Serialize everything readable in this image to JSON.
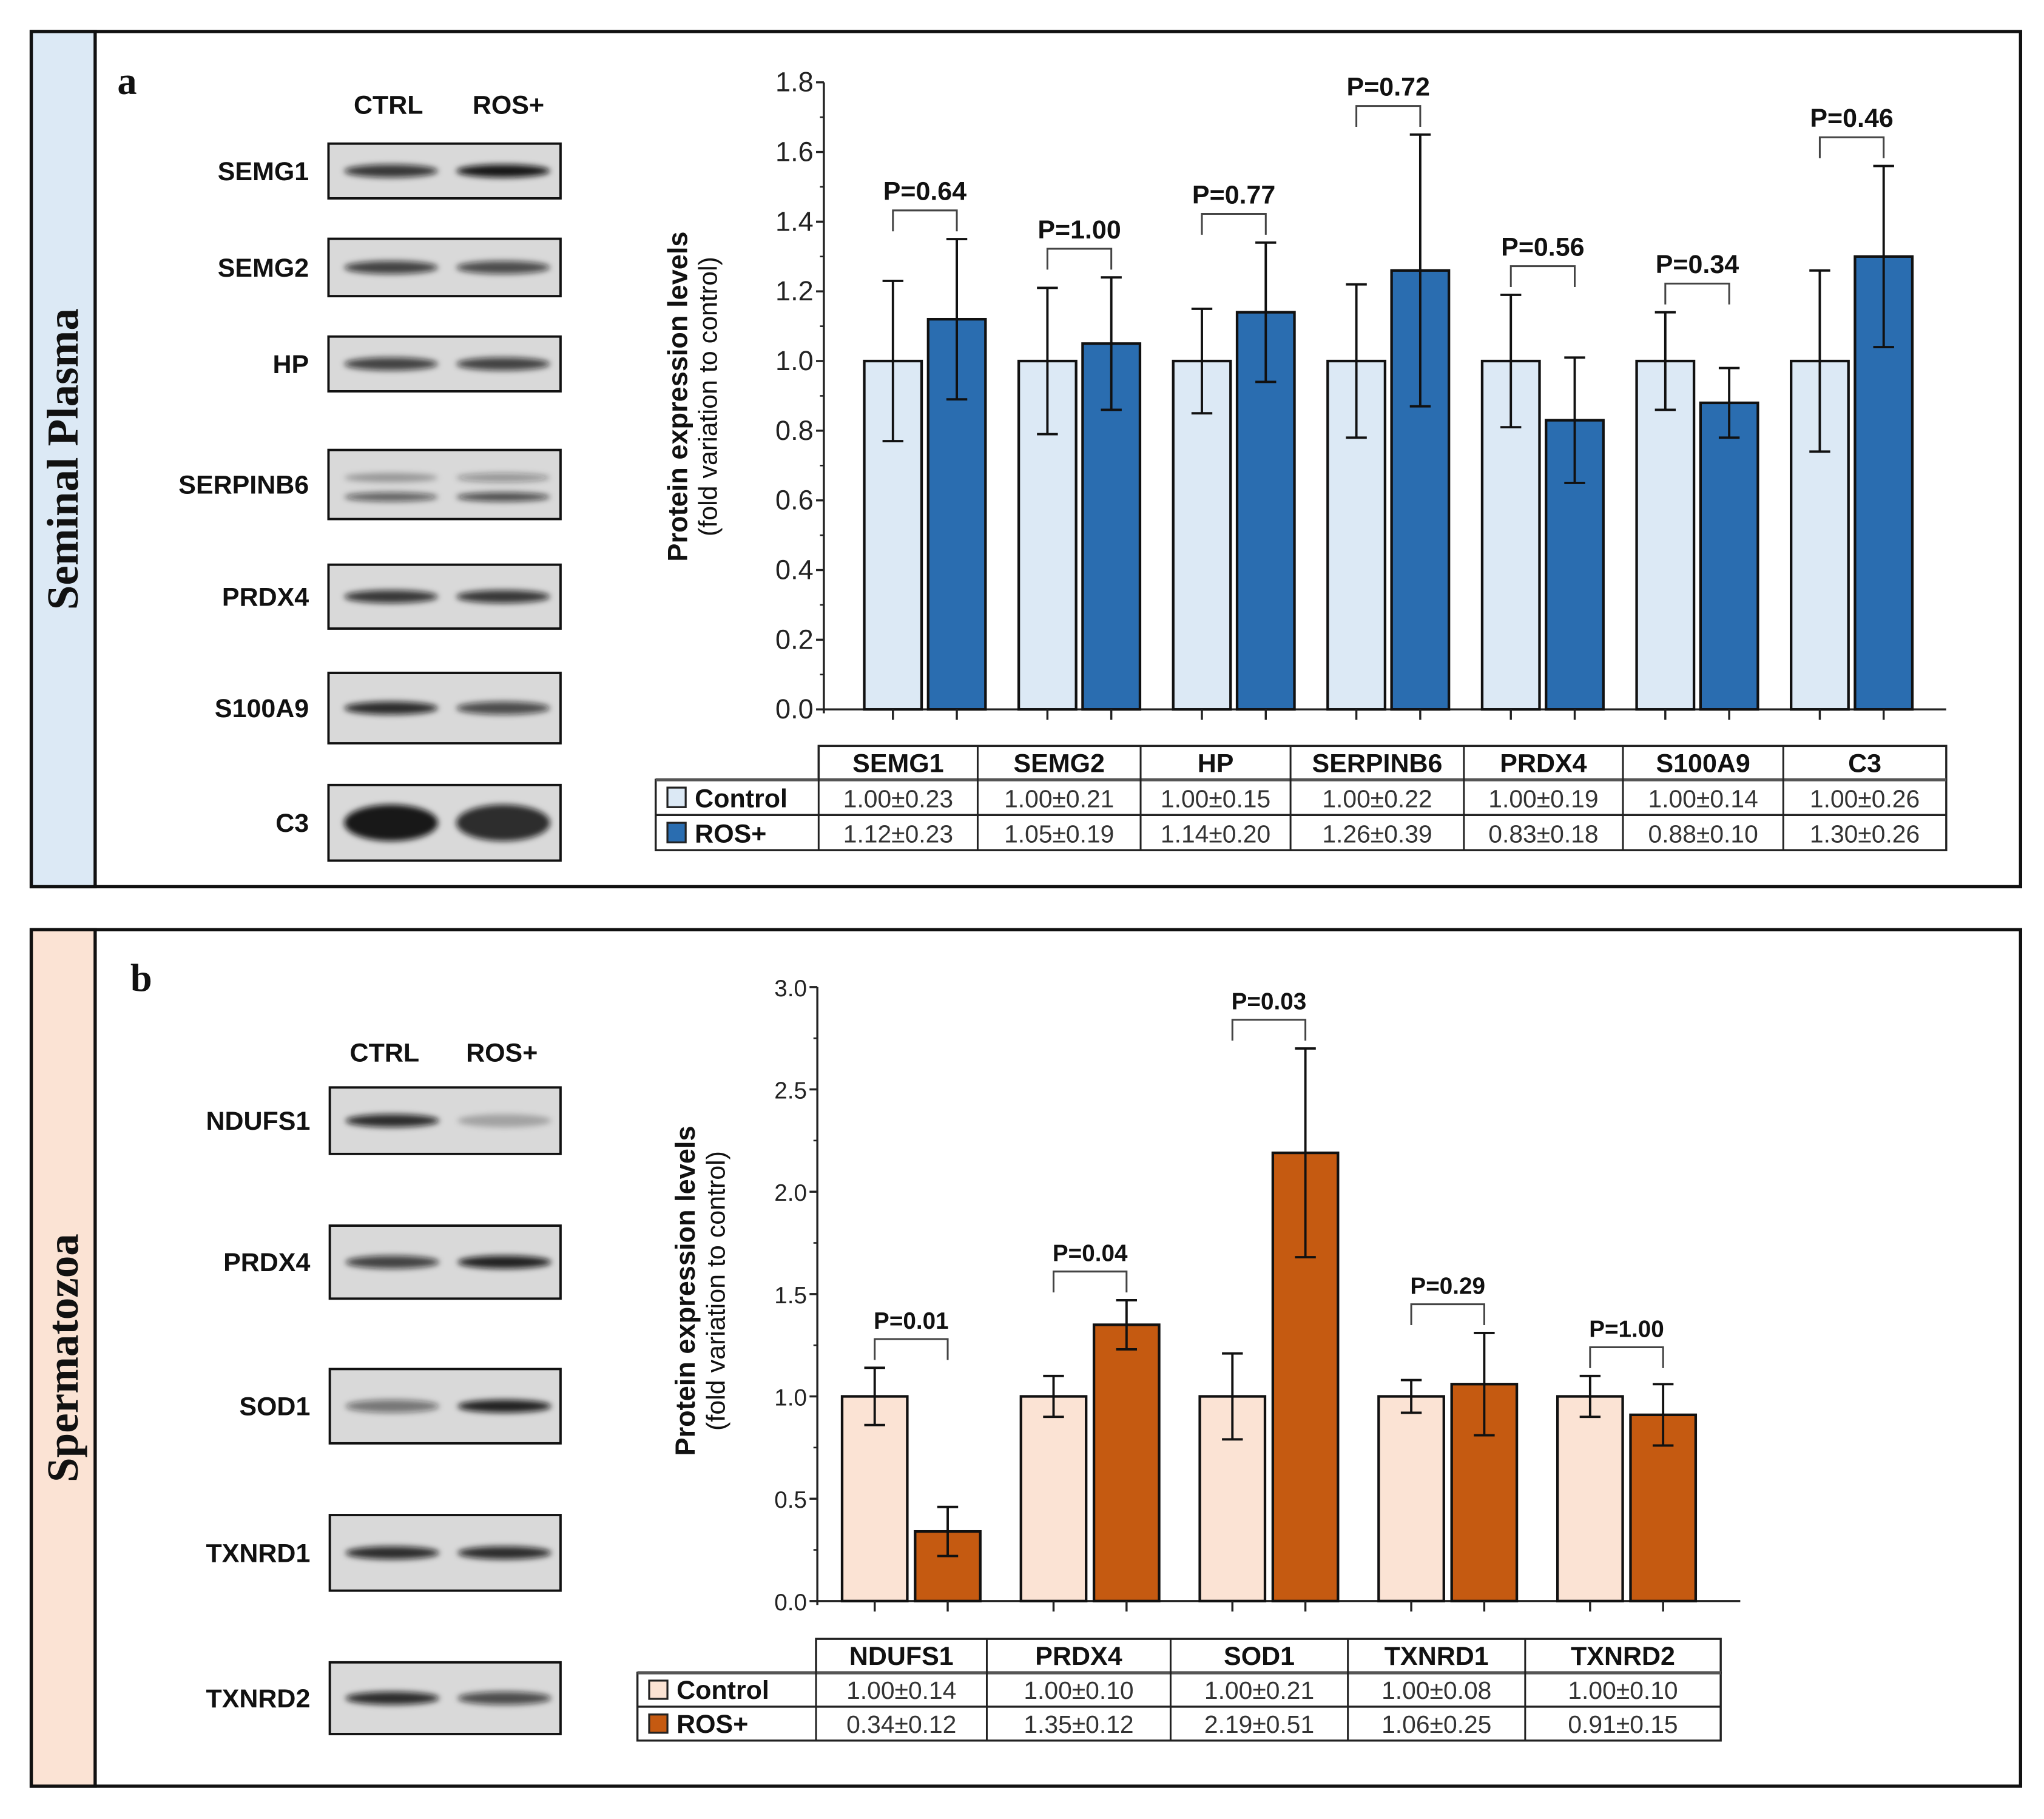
{
  "panels": [
    {
      "letter": "a",
      "side_label": "Seminal Plasma",
      "side_color": "#dce9f5",
      "blot_headers": [
        "CTRL",
        "ROS+"
      ],
      "blot_labels": [
        "SEMG1",
        "SEMG2",
        "HP",
        "SERPINB6",
        "PRDX4",
        "S100A9",
        "C3"
      ],
      "table": {
        "headers": [
          "SEMG1",
          "SEMG2",
          "HP",
          "SERPINB6",
          "PRDX4",
          "S100A9",
          "C3"
        ],
        "rows": [
          {
            "label": "Control",
            "cells": [
              "1.00±0.23",
              "1.00±0.21",
              "1.00±0.15",
              "1.00±0.22",
              "1.00±0.19",
              "1.00±0.14",
              "1.00±0.26"
            ]
          },
          {
            "label": "ROS+",
            "cells": [
              "1.12±0.23",
              "1.05±0.19",
              "1.14±0.20",
              "1.26±0.39",
              "0.83±0.18",
              "0.88±0.10",
              "1.30±0.26"
            ]
          }
        ]
      }
    },
    {
      "letter": "b",
      "side_label": "Spermatozoa",
      "side_color": "#fbe3d4",
      "blot_headers": [
        "CTRL",
        "ROS+"
      ],
      "blot_labels": [
        "NDUFS1",
        "PRDX4",
        "SOD1",
        "TXNRD1",
        "TXNRD2"
      ],
      "table": {
        "headers": [
          "NDUFS1",
          "PRDX4",
          "SOD1",
          "TXNRD1",
          "TXNRD2"
        ],
        "rows": [
          {
            "label": "Control",
            "cells": [
              "1.00±0.14",
              "1.00±0.10",
              "1.00±0.21",
              "1.00±0.08",
              "1.00±0.10"
            ]
          },
          {
            "label": "ROS+",
            "cells": [
              "0.34±0.12",
              "1.35±0.12",
              "2.19±0.51",
              "1.06±0.25",
              "0.91±0.15"
            ]
          }
        ]
      }
    }
  ],
  "chart_data": [
    {
      "type": "bar",
      "title": "",
      "ylabel": "Protein expression levels",
      "ylabel_sub": "(fold variation to control)",
      "ylim": [
        0,
        1.8
      ],
      "yticks": [
        "0.0",
        "0.2",
        "0.4",
        "0.6",
        "0.8",
        "1.0",
        "1.2",
        "1.4",
        "1.6",
        "1.8"
      ],
      "categories": [
        "SEMG1",
        "SEMG2",
        "HP",
        "SERPINB6",
        "PRDX4",
        "S100A9",
        "C3"
      ],
      "series": [
        {
          "name": "Control",
          "color": "#dce9f5",
          "values": [
            1.0,
            1.0,
            1.0,
            1.0,
            1.0,
            1.0,
            1.0
          ],
          "errors": [
            0.23,
            0.21,
            0.15,
            0.22,
            0.19,
            0.14,
            0.26
          ]
        },
        {
          "name": "ROS+",
          "color": "#2a6db0",
          "values": [
            1.12,
            1.05,
            1.14,
            1.26,
            0.83,
            0.88,
            1.3
          ],
          "errors": [
            0.23,
            0.19,
            0.2,
            0.39,
            0.18,
            0.1,
            0.26
          ]
        }
      ],
      "p_values": [
        "P=0.64",
        "P=1.00",
        "P=0.77",
        "P=0.72",
        "P=0.56",
        "P=0.34",
        "P=0.46"
      ],
      "grid": false
    },
    {
      "type": "bar",
      "title": "",
      "ylabel": "Protein expression levels",
      "ylabel_sub": "(fold variation to control)",
      "ylim": [
        0,
        3.0
      ],
      "yticks": [
        "0.0",
        "0.5",
        "1.0",
        "1.5",
        "2.0",
        "2.5",
        "3.0"
      ],
      "categories": [
        "NDUFS1",
        "PRDX4",
        "SOD1",
        "TXNRD1",
        "TXNRD2"
      ],
      "series": [
        {
          "name": "Control",
          "color": "#fbe3d4",
          "values": [
            1.0,
            1.0,
            1.0,
            1.0,
            1.0
          ],
          "errors": [
            0.14,
            0.1,
            0.21,
            0.08,
            0.1
          ]
        },
        {
          "name": "ROS+",
          "color": "#c55a11",
          "values": [
            0.34,
            1.35,
            2.19,
            1.06,
            0.91
          ],
          "errors": [
            0.12,
            0.12,
            0.51,
            0.25,
            0.15
          ]
        }
      ],
      "p_values": [
        "P=0.01",
        "P=0.04",
        "P=0.03",
        "P=0.29",
        "P=1.00"
      ],
      "grid": false
    }
  ]
}
